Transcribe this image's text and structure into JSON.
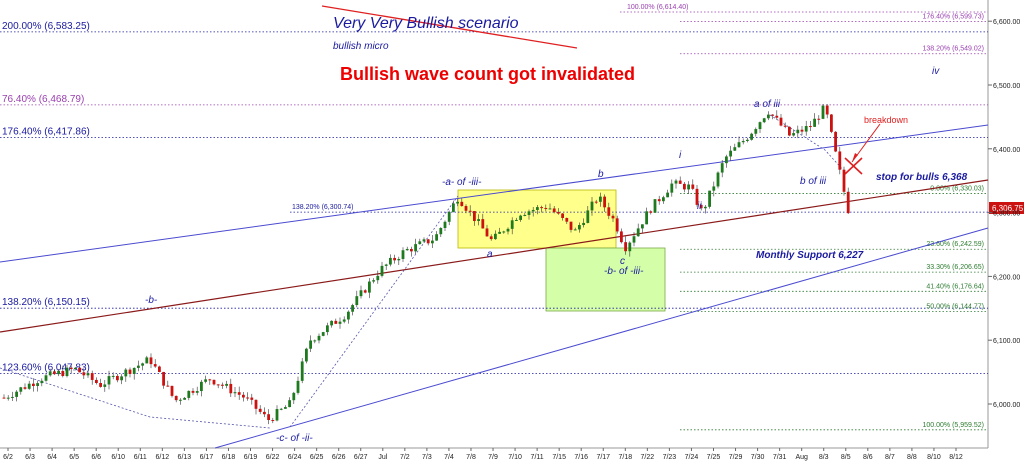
{
  "chart_data": {
    "type": "candlestick",
    "title": "Very Very Bullish scenario",
    "subtitle": "bullish micro",
    "headline": "Bullish wave count got invalidated",
    "current_price": "6,306.75",
    "ylim": [
      5940,
      6640
    ],
    "y_ticks": [
      "6,000.00",
      "6,100.00",
      "6,200.00",
      "6,300.00",
      "6,400.00",
      "6,500.00",
      "6,600.00"
    ],
    "x_labels": [
      "6/2",
      "6/3",
      "6/4",
      "6/5",
      "6/6",
      "6/10",
      "6/11",
      "6/12",
      "6/13",
      "6/17",
      "6/18",
      "6/19",
      "6/22",
      "6/24",
      "6/25",
      "6/26",
      "6/27",
      "Jul",
      "7/2",
      "7/3",
      "7/4",
      "7/8",
      "7/9",
      "7/10",
      "7/11",
      "7/15",
      "7/16",
      "7/17",
      "7/18",
      "7/22",
      "7/23",
      "7/24",
      "7/25",
      "7/29",
      "7/30",
      "7/31",
      "Aug",
      "8/3",
      "8/5",
      "8/6",
      "8/7",
      "8/8",
      "8/10",
      "8/12"
    ],
    "fib_levels": [
      {
        "label": "200.00% (6,583.25)",
        "value": 6583.25,
        "color": "#1a1aa0",
        "side": "left"
      },
      {
        "label": "76.40% (6,468.79)",
        "value": 6468.79,
        "color": "#9a3fb0",
        "side": "left"
      },
      {
        "label": "176.40% (6,417.86)",
        "value": 6417.86,
        "color": "#1a1aa0",
        "side": "left"
      },
      {
        "label": "138.20% (6,300.74)",
        "value": 6300.74,
        "color": "#1a1aa0",
        "side": "mid"
      },
      {
        "label": "138.20% (6,150.15)",
        "value": 6150.15,
        "color": "#1a1aa0",
        "side": "left"
      },
      {
        "label": "123.60% (6,047.83)",
        "value": 6047.83,
        "color": "#1a1aa0",
        "side": "left"
      },
      {
        "label": "100.00% (6,614.40)",
        "value": 6614.4,
        "color": "#9a3fb0",
        "side": "top"
      },
      {
        "label": "176.40% (6,599.73)",
        "value": 6599.73,
        "color": "#9a3fb0",
        "side": "right"
      },
      {
        "label": "138.20% (6,549.02)",
        "value": 6549.02,
        "color": "#9a3fb0",
        "side": "right"
      },
      {
        "label": "0.00% (6,330.03)",
        "value": 6330.03,
        "color": "#2e7d32",
        "side": "right"
      },
      {
        "label": "23.60% (6,242.59)",
        "value": 6242.59,
        "color": "#2e7d32",
        "side": "right"
      },
      {
        "label": "33.30% (6,206.65)",
        "value": 6206.65,
        "color": "#2e7d32",
        "side": "right"
      },
      {
        "label": "41.40% (6,176.64)",
        "value": 6176.64,
        "color": "#2e7d32",
        "side": "right"
      },
      {
        "label": "50.00% (6,144.77)",
        "value": 6144.77,
        "color": "#2e7d32",
        "side": "right"
      },
      {
        "label": "100.00% (5,959.52)",
        "value": 5959.52,
        "color": "#2e7d32",
        "side": "right"
      }
    ],
    "wave_labels": [
      "-a- of -iii-",
      "b",
      "a",
      "c",
      "-b- of -iii-",
      "i",
      "ii",
      "a of iii",
      "b of iii",
      "iv",
      "-b-",
      "-c- of -ii-"
    ],
    "annotations": {
      "breakdown": "breakdown",
      "stop": "stop for bulls 6,368",
      "support": "Monthly Support 6,227"
    },
    "colors": {
      "up": "#1f7a1f",
      "down": "#cc1111",
      "blue": "#1a1aa0",
      "headline": "#ee0000",
      "trend_brown": "#8b1a1a",
      "trend_blue": "#4a4ad0",
      "yellow_box": "#ffff66",
      "green_box": "#ccff99"
    }
  }
}
